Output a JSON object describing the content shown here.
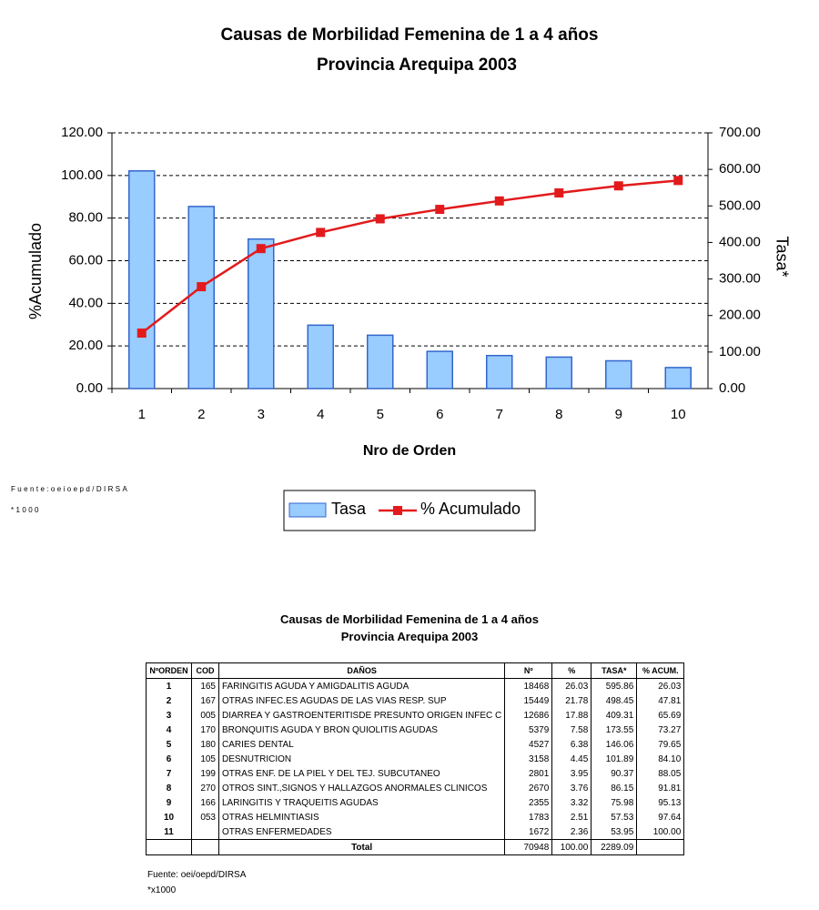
{
  "chart_data": {
    "type": "bar",
    "title": "Causas de Morbilidad Femenina de 1 a 4 años",
    "subtitle": "Provincia Arequipa 2003",
    "xlabel": "Nro de Orden",
    "ylabel": "%Acumulado",
    "y2label": "Tasa*",
    "categories": [
      "1",
      "2",
      "3",
      "4",
      "5",
      "6",
      "7",
      "8",
      "9",
      "10"
    ],
    "series": [
      {
        "name": "Tasa",
        "type": "bar",
        "axis": "y2",
        "color": "#99ccff",
        "values": [
          595.86,
          498.45,
          409.31,
          173.55,
          146.06,
          101.89,
          90.37,
          86.15,
          75.98,
          57.53
        ]
      },
      {
        "name": "% Acumulado",
        "type": "line",
        "axis": "y",
        "color": "#e31a1c",
        "values": [
          26.03,
          47.81,
          65.69,
          73.27,
          79.65,
          84.1,
          88.05,
          91.81,
          95.13,
          97.64
        ]
      }
    ],
    "ylim": [
      0,
      120
    ],
    "yticks": [
      {
        "value": 0,
        "label": "0.00"
      },
      {
        "value": 20,
        "label": "20.00"
      },
      {
        "value": 40,
        "label": "40.00"
      },
      {
        "value": 60,
        "label": "60.00"
      },
      {
        "value": 80,
        "label": "80.00"
      },
      {
        "value": 100,
        "label": "100.00"
      },
      {
        "value": 120,
        "label": "120.00"
      }
    ],
    "y2lim": [
      0,
      700
    ],
    "y2ticks": [
      {
        "value": 0,
        "label": "0.00"
      },
      {
        "value": 100,
        "label": "100.00"
      },
      {
        "value": 200,
        "label": "200.00"
      },
      {
        "value": 300,
        "label": "300.00"
      },
      {
        "value": 400,
        "label": "400.00"
      },
      {
        "value": 500,
        "label": "500.00"
      },
      {
        "value": 600,
        "label": "600.00"
      },
      {
        "value": 700,
        "label": "700.00"
      }
    ],
    "grid": true,
    "legend": "bottom",
    "notes": [
      "Fuente:oeioepd/DIRSA",
      "*1000"
    ]
  },
  "table": {
    "title": "Causas de Morbilidad Femenina de 1 a 4 años",
    "subtitle": "Provincia Arequipa 2003",
    "headers": [
      "NºORDEN",
      "COD",
      "DAÑOS",
      "Nº",
      "%",
      "TASA*",
      "% ACUM."
    ],
    "rows": [
      [
        "1",
        "165",
        "FARINGITIS AGUDA Y AMIGDALITIS AGUDA",
        "18468",
        "26.03",
        "595.86",
        "26.03"
      ],
      [
        "2",
        "167",
        "OTRAS INFEC.ES AGUDAS DE LAS VIAS RESP. SUP",
        "15449",
        "21.78",
        "498.45",
        "47.81"
      ],
      [
        "3",
        "005",
        "DIARREA Y GASTROENTERITISDE PRESUNTO ORIGEN INFEC C",
        "12686",
        "17.88",
        "409.31",
        "65.69"
      ],
      [
        "4",
        "170",
        "BRONQUITIS AGUDA Y BRON  QUIOLITIS AGUDAS",
        "5379",
        "7.58",
        "173.55",
        "73.27"
      ],
      [
        "5",
        "180",
        "CARIES DENTAL",
        "4527",
        "6.38",
        "146.06",
        "79.65"
      ],
      [
        "6",
        "105",
        "DESNUTRICION",
        "3158",
        "4.45",
        "101.89",
        "84.10"
      ],
      [
        "7",
        "199",
        "OTRAS ENF. DE LA PIEL Y  DEL TEJ. SUBCUTANEO",
        "2801",
        "3.95",
        "90.37",
        "88.05"
      ],
      [
        "8",
        "270",
        "OTROS SINT.,SIGNOS Y HALLAZGOS ANORMALES CLINICOS",
        "2670",
        "3.76",
        "86.15",
        "91.81"
      ],
      [
        "9",
        "166",
        "LARINGITIS Y TRAQUEITIS AGUDAS",
        "2355",
        "3.32",
        "75.98",
        "95.13"
      ],
      [
        "10",
        "053",
        "OTRAS HELMINTIASIS",
        "1783",
        "2.51",
        "57.53",
        "97.64"
      ],
      [
        "11",
        null,
        "OTRAS ENFERMEDADES",
        "1672",
        "2.36",
        "53.95",
        "100.00"
      ]
    ],
    "total": [
      "Total",
      "70948",
      "100.00",
      "2289.09"
    ],
    "notes": [
      "Fuente: oei/oepd/DIRSA",
      "*x1000"
    ]
  }
}
